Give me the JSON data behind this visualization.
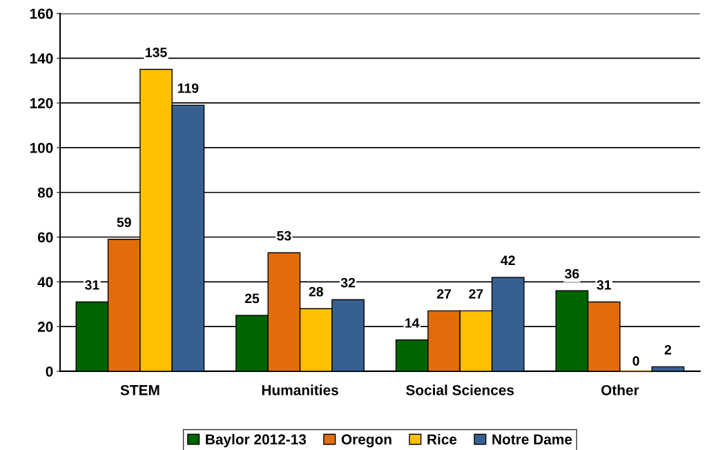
{
  "chart_data": {
    "type": "bar",
    "categories": [
      "STEM",
      "Humanities",
      "Social Sciences",
      "Other"
    ],
    "series": [
      {
        "name": "Baylor 2012-13",
        "color": "#006400",
        "values": [
          31,
          25,
          14,
          36
        ]
      },
      {
        "name": "Oregon",
        "color": "#e36c0a",
        "values": [
          59,
          53,
          27,
          31
        ]
      },
      {
        "name": "Rice",
        "color": "#ffc000",
        "values": [
          135,
          28,
          27,
          0
        ]
      },
      {
        "name": "Notre Dame",
        "color": "#376092",
        "values": [
          119,
          32,
          42,
          2
        ]
      }
    ],
    "ylim": [
      0,
      160
    ],
    "yticks": [
      0,
      20,
      40,
      60,
      80,
      100,
      120,
      140,
      160
    ],
    "grid": "y",
    "legend": "bottom",
    "data_labels": true
  }
}
